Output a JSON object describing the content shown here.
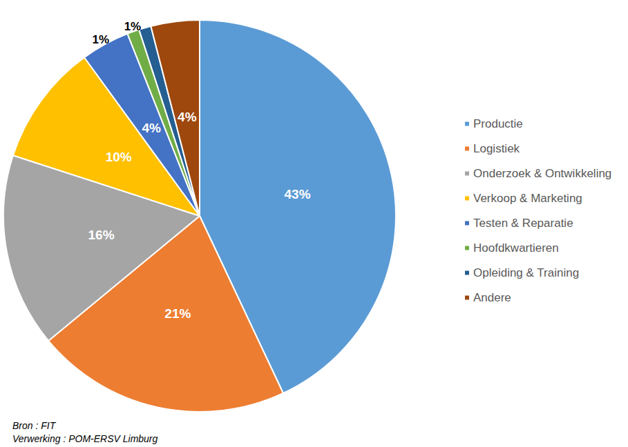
{
  "chart_data": {
    "type": "pie",
    "categories": [
      "Productie",
      "Logistiek",
      "Onderzoek & Ontwikkeling",
      "Verkoop & Marketing",
      "Testen & Reparatie",
      "Hoofdkwartieren",
      "Opleiding & Training",
      "Andere"
    ],
    "values": [
      43,
      21,
      16,
      10,
      4,
      1,
      1,
      4
    ],
    "value_labels": [
      "43%",
      "21%",
      "16%",
      "10%",
      "4%",
      "1%",
      "1%",
      "4%"
    ],
    "colors": [
      "#5B9BD5",
      "#ED7D31",
      "#A5A5A5",
      "#FFC000",
      "#4472C4",
      "#70AD47",
      "#255E91",
      "#9E480E"
    ],
    "data_labels": true,
    "legend": "right",
    "annotations": [
      "Bron : FIT",
      "Verwerking : POM-ERSV Limburg"
    ]
  }
}
